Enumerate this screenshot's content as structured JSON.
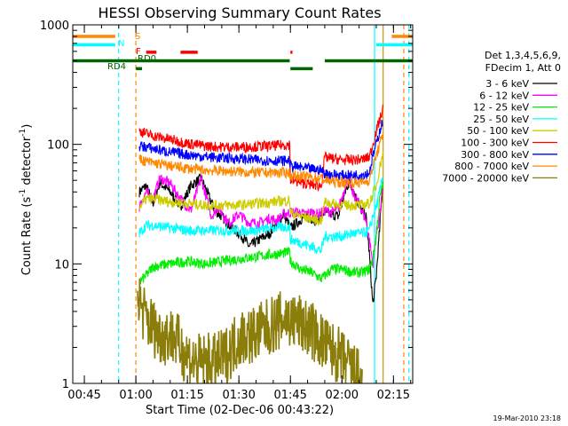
{
  "chart_data": {
    "type": "line",
    "title": "HESSI Observing Summary Count Rates",
    "xlabel": "Start Time (02-Dec-06 00:43:22)",
    "ylabel_main": "Count Rate (s",
    "ylabel_sup1": "-1",
    "ylabel_mid": " detector",
    "ylabel_sup2": "-1",
    "ylabel_end": ")",
    "y_scale": "log",
    "ylim": [
      1,
      1000
    ],
    "xlim_minutes": [
      -3.37,
      95.6
    ],
    "y_ticks": [
      {
        "value": 1,
        "label": "1"
      },
      {
        "value": 10,
        "label": "10"
      },
      {
        "value": 100,
        "label": "100"
      },
      {
        "value": 1000,
        "label": "1000"
      }
    ],
    "x_ticks": [
      {
        "value": 0,
        "label": "00:45"
      },
      {
        "value": 15,
        "label": "01:00"
      },
      {
        "value": 30,
        "label": "01:15"
      },
      {
        "value": 45,
        "label": "01:30"
      },
      {
        "value": 60,
        "label": "01:45"
      },
      {
        "value": 75,
        "label": "02:00"
      },
      {
        "value": 90,
        "label": "02:15"
      }
    ],
    "legend_header": [
      "Det 1,3,4,5,6,9,",
      "FDecim 1, Att 0"
    ],
    "legend_position": "right",
    "series": [
      {
        "name": "3 - 6 keV",
        "color": "#000000",
        "points": [
          [
            16,
            40
          ],
          [
            18,
            45
          ],
          [
            20,
            32
          ],
          [
            22,
            48
          ],
          [
            25,
            40
          ],
          [
            28,
            30
          ],
          [
            31,
            45
          ],
          [
            34,
            52
          ],
          [
            38,
            28
          ],
          [
            40,
            25
          ],
          [
            43,
            20
          ],
          [
            46,
            17
          ],
          [
            48,
            14
          ],
          [
            51,
            16
          ],
          [
            54,
            18
          ],
          [
            56,
            22
          ],
          [
            58,
            26
          ],
          [
            60,
            20
          ],
          [
            62,
            22
          ],
          [
            64,
            25
          ],
          [
            66,
            24
          ],
          [
            68,
            23
          ],
          [
            70,
            27
          ],
          [
            72,
            26
          ],
          [
            74,
            25
          ],
          [
            76,
            40
          ],
          [
            77,
            48
          ],
          [
            78,
            44
          ],
          [
            80,
            30
          ],
          [
            82,
            25
          ],
          [
            83,
            12
          ],
          [
            84,
            4.5
          ],
          [
            85,
            8
          ],
          [
            86,
            20
          ],
          [
            87,
            55
          ]
        ]
      },
      {
        "name": "6 - 12 keV",
        "color": "#ff00ff",
        "points": [
          [
            16,
            30
          ],
          [
            18,
            40
          ],
          [
            20,
            35
          ],
          [
            22,
            52
          ],
          [
            25,
            47
          ],
          [
            28,
            35
          ],
          [
            31,
            28
          ],
          [
            34,
            52
          ],
          [
            37,
            25
          ],
          [
            39,
            30
          ],
          [
            42,
            22
          ],
          [
            45,
            26
          ],
          [
            48,
            22
          ],
          [
            51,
            22
          ],
          [
            54,
            24
          ],
          [
            56,
            23
          ],
          [
            58,
            26
          ],
          [
            60,
            27
          ],
          [
            62,
            27
          ],
          [
            64,
            26
          ],
          [
            66,
            27
          ],
          [
            68,
            26
          ],
          [
            70,
            28
          ],
          [
            72,
            27
          ],
          [
            74,
            29
          ],
          [
            76,
            45
          ],
          [
            77,
            55
          ],
          [
            78,
            40
          ],
          [
            80,
            32
          ],
          [
            82,
            23
          ],
          [
            83,
            16
          ],
          [
            84,
            10
          ],
          [
            85,
            18
          ],
          [
            86,
            25
          ],
          [
            87,
            48
          ]
        ]
      },
      {
        "name": "12 - 25 keV",
        "color": "#00ee00",
        "points": [
          [
            16,
            7
          ],
          [
            18,
            8
          ],
          [
            20,
            9.5
          ],
          [
            25,
            10
          ],
          [
            30,
            10.5
          ],
          [
            35,
            10
          ],
          [
            40,
            10.5
          ],
          [
            45,
            11
          ],
          [
            50,
            11.5
          ],
          [
            55,
            12
          ],
          [
            59.8,
            12.5
          ],
          [
            60,
            10.5
          ],
          [
            63,
            9
          ],
          [
            66,
            8.5
          ],
          [
            69,
            7.5
          ],
          [
            72,
            9
          ],
          [
            75,
            9
          ],
          [
            78,
            8.5
          ],
          [
            81,
            8.5
          ],
          [
            83,
            9
          ],
          [
            84,
            11
          ],
          [
            85,
            17
          ],
          [
            86,
            35
          ],
          [
            87,
            48
          ]
        ]
      },
      {
        "name": "25 - 50 keV",
        "color": "#00ffff",
        "points": [
          [
            16,
            18
          ],
          [
            18,
            21
          ],
          [
            20,
            21
          ],
          [
            25,
            20
          ],
          [
            30,
            19
          ],
          [
            35,
            19
          ],
          [
            40,
            19
          ],
          [
            45,
            19
          ],
          [
            50,
            19
          ],
          [
            55,
            20
          ],
          [
            59.8,
            20.5
          ],
          [
            60,
            16
          ],
          [
            63,
            15
          ],
          [
            66,
            14
          ],
          [
            69,
            13
          ],
          [
            70,
            17
          ],
          [
            72,
            17
          ],
          [
            75,
            17
          ],
          [
            78,
            18
          ],
          [
            81,
            18
          ],
          [
            83,
            19
          ],
          [
            84,
            25
          ],
          [
            85,
            30
          ],
          [
            86,
            40
          ],
          [
            87,
            55
          ]
        ]
      },
      {
        "name": "50 - 100 keV",
        "color": "#cccc00",
        "points": [
          [
            16,
            30
          ],
          [
            18,
            35
          ],
          [
            20,
            35
          ],
          [
            25,
            33
          ],
          [
            30,
            32
          ],
          [
            35,
            31
          ],
          [
            40,
            31
          ],
          [
            45,
            31
          ],
          [
            50,
            32
          ],
          [
            55,
            33
          ],
          [
            59.8,
            34
          ],
          [
            60,
            27
          ],
          [
            63,
            25
          ],
          [
            66,
            24
          ],
          [
            69,
            23
          ],
          [
            70,
            33
          ],
          [
            72,
            32
          ],
          [
            75,
            31
          ],
          [
            78,
            31
          ],
          [
            81,
            31
          ],
          [
            83,
            32
          ],
          [
            84,
            38
          ],
          [
            85,
            45
          ],
          [
            86,
            65
          ],
          [
            87,
            85
          ]
        ]
      },
      {
        "name": "100 - 300 keV",
        "color": "#ff0000",
        "points": [
          [
            16,
            130
          ],
          [
            18,
            123
          ],
          [
            20,
            118
          ],
          [
            25,
            110
          ],
          [
            30,
            102
          ],
          [
            35,
            97
          ],
          [
            40,
            95
          ],
          [
            45,
            95
          ],
          [
            50,
            96
          ],
          [
            55,
            97
          ],
          [
            59.8,
            100
          ],
          [
            60,
            50
          ],
          [
            63,
            48
          ],
          [
            66,
            46
          ],
          [
            69,
            45
          ],
          [
            70,
            78
          ],
          [
            72,
            76
          ],
          [
            75,
            74
          ],
          [
            78,
            74
          ],
          [
            81,
            75
          ],
          [
            83,
            78
          ],
          [
            84,
            100
          ],
          [
            85,
            130
          ],
          [
            86,
            160
          ],
          [
            87,
            200
          ]
        ]
      },
      {
        "name": "300 - 800 keV",
        "color": "#0000ff",
        "points": [
          [
            16,
            97
          ],
          [
            18,
            95
          ],
          [
            20,
            92
          ],
          [
            25,
            86
          ],
          [
            30,
            82
          ],
          [
            35,
            79
          ],
          [
            40,
            77
          ],
          [
            45,
            76
          ],
          [
            50,
            74
          ],
          [
            55,
            73
          ],
          [
            59.8,
            73
          ],
          [
            60,
            66
          ],
          [
            63,
            64
          ],
          [
            66,
            62
          ],
          [
            69,
            61
          ],
          [
            70,
            57
          ],
          [
            72,
            56
          ],
          [
            75,
            55
          ],
          [
            78,
            55
          ],
          [
            81,
            56
          ],
          [
            83,
            58
          ],
          [
            84,
            80
          ],
          [
            85,
            100
          ],
          [
            86,
            130
          ],
          [
            87,
            160
          ]
        ]
      },
      {
        "name": "800 - 7000 keV",
        "color": "#ff8800",
        "points": [
          [
            16,
            75
          ],
          [
            18,
            72
          ],
          [
            20,
            70
          ],
          [
            25,
            66
          ],
          [
            30,
            63
          ],
          [
            35,
            61
          ],
          [
            40,
            60
          ],
          [
            45,
            59
          ],
          [
            50,
            58
          ],
          [
            55,
            58
          ],
          [
            59.8,
            58
          ],
          [
            60,
            55
          ],
          [
            63,
            54
          ],
          [
            66,
            53
          ],
          [
            69,
            52
          ],
          [
            70,
            50
          ],
          [
            72,
            49
          ],
          [
            75,
            48
          ],
          [
            78,
            48
          ],
          [
            81,
            48
          ],
          [
            83,
            50
          ],
          [
            84,
            65
          ],
          [
            85,
            80
          ],
          [
            86,
            100
          ],
          [
            87,
            120
          ]
        ]
      },
      {
        "name": "7000 - 20000 keV",
        "color": "#8b7d0a",
        "points": [
          [
            15.5,
            6
          ],
          [
            16,
            5
          ],
          [
            17,
            4
          ],
          [
            18,
            3.5
          ],
          [
            19,
            3.2
          ],
          [
            20,
            3
          ],
          [
            22,
            2.5
          ],
          [
            24,
            2.5
          ],
          [
            26,
            2.5
          ],
          [
            28,
            2
          ],
          [
            30,
            1.7
          ],
          [
            32,
            1.5
          ],
          [
            34,
            1.5
          ],
          [
            36,
            1.5
          ],
          [
            38,
            1.5
          ],
          [
            40,
            1.6
          ],
          [
            42,
            1.8
          ],
          [
            44,
            2.2
          ],
          [
            46,
            2.5
          ],
          [
            48,
            2.5
          ],
          [
            50,
            2.6
          ],
          [
            52,
            2.8
          ],
          [
            54,
            3
          ],
          [
            56,
            3.2
          ],
          [
            58,
            3.5
          ],
          [
            59.8,
            3.5
          ],
          [
            60,
            3.2
          ],
          [
            62,
            3.3
          ],
          [
            64,
            3
          ],
          [
            66,
            2.8
          ],
          [
            68,
            2.4
          ],
          [
            70,
            2.1
          ],
          [
            72,
            1.9
          ],
          [
            74,
            1.7
          ],
          [
            76,
            1.5
          ],
          [
            78,
            1.3
          ],
          [
            80,
            1.1
          ],
          [
            81,
            1.0
          ]
        ]
      }
    ],
    "status_bars": [
      {
        "label": "S",
        "color": "#ff8800",
        "segments": [
          [
            -3.4,
            9
          ],
          [
            89.5,
            95.6
          ]
        ],
        "y_level": 800
      },
      {
        "label": "N",
        "color": "#00ffff",
        "segments": [
          [
            -3.4,
            9
          ],
          [
            85,
            95.6
          ]
        ],
        "y_level": 680
      },
      {
        "label": "F",
        "color": "#ff0000",
        "segments": [
          [
            18,
            21
          ],
          [
            28,
            33
          ],
          [
            60,
            60.6
          ]
        ],
        "y_level": 590
      },
      {
        "label": "RD0",
        "color": "#006400",
        "segments": [
          [
            -3.4,
            59.8
          ],
          [
            70,
            95.6
          ]
        ],
        "y_level": 500
      },
      {
        "label": "RD4",
        "color": "#006400",
        "segments": [
          [
            15,
            16.8
          ],
          [
            60,
            66.5
          ]
        ],
        "y_level": 430
      }
    ],
    "vertical_lines": [
      {
        "x": 10,
        "color": "#00ffff",
        "style": "dashed"
      },
      {
        "x": 15,
        "color": "#ff8800",
        "style": "dashed"
      },
      {
        "x": 84.5,
        "color": "#00ffff",
        "style": "solid"
      },
      {
        "x": 87,
        "color": "#cc9900",
        "style": "solid"
      },
      {
        "x": 93,
        "color": "#ff8800",
        "style": "dashed"
      },
      {
        "x": 94.5,
        "color": "#00ffff",
        "style": "dashed"
      }
    ],
    "footer_date": "19-Mar-2010 23:18"
  }
}
